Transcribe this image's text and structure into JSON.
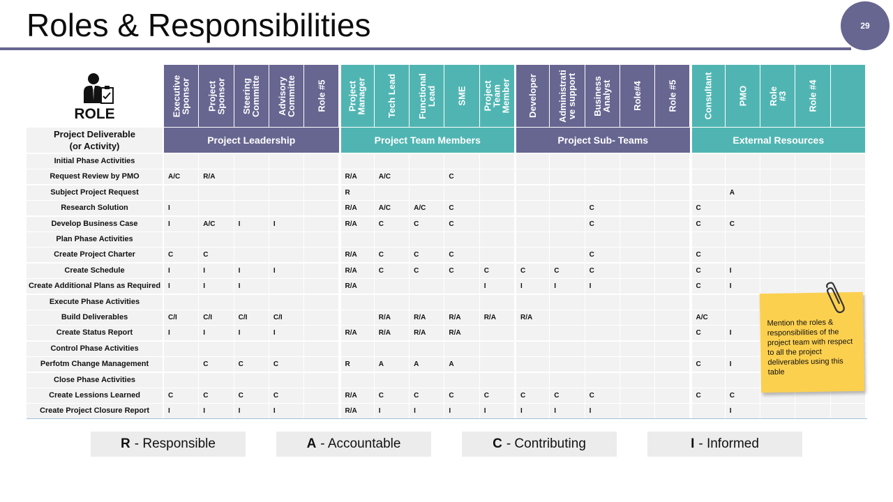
{
  "page": {
    "title": "Roles & Responsibilities",
    "page_number": "29"
  },
  "role_heading": "ROLE",
  "deliverable_header": "Project Deliverable\n(or Activity)",
  "icons": {
    "role": "person-clipboard-icon",
    "note_clip": "paperclip-icon"
  },
  "colors": {
    "accent_purple": "#676691",
    "accent_teal": "#50b5b2",
    "cell_bg": "#f2f2f2",
    "note": "#fcd04f"
  },
  "columns": [
    {
      "label": "Executive\nSponsor",
      "style": "purple"
    },
    {
      "label": "Project\nSponsor",
      "style": "purple"
    },
    {
      "label": "Steering\nCommitte",
      "style": "purple"
    },
    {
      "label": "Advisory\nCommitte",
      "style": "purple"
    },
    {
      "label": "Role #5",
      "style": "purple"
    },
    {
      "label": "Project\nManager",
      "style": "teal"
    },
    {
      "label": "Tech Lead",
      "style": "teal"
    },
    {
      "label": "Functional\nLead",
      "style": "teal"
    },
    {
      "label": "SME",
      "style": "teal"
    },
    {
      "label": "Project\nTeam\nMember",
      "style": "teal"
    },
    {
      "label": "Developer",
      "style": "purple"
    },
    {
      "label": "Administrati\nve support",
      "style": "purple"
    },
    {
      "label": "Business\nAnalyst",
      "style": "purple"
    },
    {
      "label": "Role#4",
      "style": "purple"
    },
    {
      "label": "Role #5",
      "style": "purple"
    },
    {
      "label": "Consultant",
      "style": "teal"
    },
    {
      "label": "PMO",
      "style": "teal"
    },
    {
      "label": "Role\n#3",
      "style": "teal"
    },
    {
      "label": "Role #4",
      "style": "teal"
    },
    {
      "label": "",
      "style": "teal"
    }
  ],
  "groups": [
    {
      "label": "Project Leadership",
      "style": "purple"
    },
    {
      "label": "Project Team Members",
      "style": "teal"
    },
    {
      "label": "Project Sub- Teams",
      "style": "purple"
    },
    {
      "label": "External Resources",
      "style": "teal"
    }
  ],
  "rows": [
    {
      "label": "Initial Phase Activities",
      "cells": [
        "",
        "",
        "",
        "",
        "",
        "",
        "",
        "",
        "",
        "",
        "",
        "",
        "",
        "",
        "",
        "",
        "",
        "",
        "",
        ""
      ]
    },
    {
      "label": "Request Review by PMO",
      "cells": [
        "A/C",
        "R/A",
        "",
        "",
        "",
        "R/A",
        "A/C",
        "",
        "C",
        "",
        "",
        "",
        "",
        "",
        "",
        "",
        "",
        "",
        "",
        ""
      ]
    },
    {
      "label": "Subject Project Request",
      "cells": [
        "",
        "",
        "",
        "",
        "",
        "R",
        "",
        "",
        "",
        "",
        "",
        "",
        "",
        "",
        "",
        "",
        "A",
        "",
        "",
        ""
      ]
    },
    {
      "label": "Research Solution",
      "cells": [
        "I",
        "",
        "",
        "",
        "",
        "R/A",
        "A/C",
        "A/C",
        "C",
        "",
        "",
        "",
        "C",
        "",
        "",
        "C",
        "",
        "",
        "",
        ""
      ]
    },
    {
      "label": "Develop Business Case",
      "cells": [
        "I",
        "A/C",
        "I",
        "I",
        "",
        "R/A",
        "C",
        "C",
        "C",
        "",
        "",
        "",
        "C",
        "",
        "",
        "C",
        "C",
        "",
        "",
        ""
      ]
    },
    {
      "label": "Plan Phase Activities",
      "cells": [
        "",
        "",
        "",
        "",
        "",
        "",
        "",
        "",
        "",
        "",
        "",
        "",
        "",
        "",
        "",
        "",
        "",
        "",
        "",
        ""
      ]
    },
    {
      "label": "Create Project Charter",
      "cells": [
        "C",
        "C",
        "",
        "",
        "",
        "R/A",
        "C",
        "C",
        "C",
        "",
        "",
        "",
        "C",
        "",
        "",
        "C",
        "",
        "",
        "",
        ""
      ]
    },
    {
      "label": "Create Schedule",
      "cells": [
        "I",
        "I",
        "I",
        "I",
        "",
        "R/A",
        "C",
        "C",
        "C",
        "C",
        "C",
        "C",
        "C",
        "",
        "",
        "C",
        "I",
        "",
        "",
        ""
      ]
    },
    {
      "label": "Create Additional Plans as Required",
      "cells": [
        "I",
        "I",
        "I",
        "",
        "",
        "R/A",
        "",
        "",
        "",
        "I",
        "I",
        "I",
        "I",
        "",
        "",
        "C",
        "I",
        "",
        "",
        ""
      ]
    },
    {
      "label": "Execute Phase Activities",
      "cells": [
        "",
        "",
        "",
        "",
        "",
        "",
        "",
        "",
        "",
        "",
        "",
        "",
        "",
        "",
        "",
        "",
        "",
        "",
        "",
        ""
      ]
    },
    {
      "label": "Build Deliverables",
      "cells": [
        "C/I",
        "C/I",
        "C/I",
        "C/I",
        "",
        "",
        "R/A",
        "R/A",
        "R/A",
        "R/A",
        "R/A",
        "",
        "",
        "",
        "",
        "A/C",
        "",
        "",
        "",
        ""
      ]
    },
    {
      "label": "Create Status Report",
      "cells": [
        "I",
        "I",
        "I",
        "I",
        "",
        "R/A",
        "R/A",
        "R/A",
        "R/A",
        "",
        "",
        "",
        "",
        "",
        "",
        "C",
        "I",
        "",
        "",
        ""
      ]
    },
    {
      "label": "Control Phase Activities",
      "cells": [
        "",
        "",
        "",
        "",
        "",
        "",
        "",
        "",
        "",
        "",
        "",
        "",
        "",
        "",
        "",
        "",
        "",
        "",
        "",
        ""
      ]
    },
    {
      "label": "Perfotm Change Management",
      "cells": [
        "",
        "C",
        "C",
        "C",
        "",
        "R",
        "A",
        "A",
        "A",
        "",
        "",
        "",
        "",
        "",
        "",
        "C",
        "I",
        "",
        "",
        ""
      ]
    },
    {
      "label": "Close Phase Activities",
      "cells": [
        "",
        "",
        "",
        "",
        "",
        "",
        "",
        "",
        "",
        "",
        "",
        "",
        "",
        "",
        "",
        "",
        "",
        "",
        "",
        ""
      ]
    },
    {
      "label": "Create Lessions Learned",
      "cells": [
        "C",
        "C",
        "C",
        "C",
        "",
        "R/A",
        "C",
        "C",
        "C",
        "C",
        "C",
        "C",
        "C",
        "",
        "",
        "C",
        "C",
        "",
        "",
        ""
      ]
    },
    {
      "label": "Create Project Closure Report",
      "cells": [
        "I",
        "I",
        "I",
        "I",
        "",
        "R/A",
        "I",
        "I",
        "I",
        "I",
        "I",
        "I",
        "I",
        "",
        "",
        "",
        "I",
        "",
        "",
        ""
      ]
    }
  ],
  "legend": [
    {
      "letter": "R",
      "text": "- Responsible"
    },
    {
      "letter": "A",
      "text": "- Accountable"
    },
    {
      "letter": "C",
      "text": "- Contributing"
    },
    {
      "letter": "I",
      "text": "- Informed"
    }
  ],
  "note_text": "Mention the roles & responsibilities of the project team with respect to all the project deliverables using this table"
}
